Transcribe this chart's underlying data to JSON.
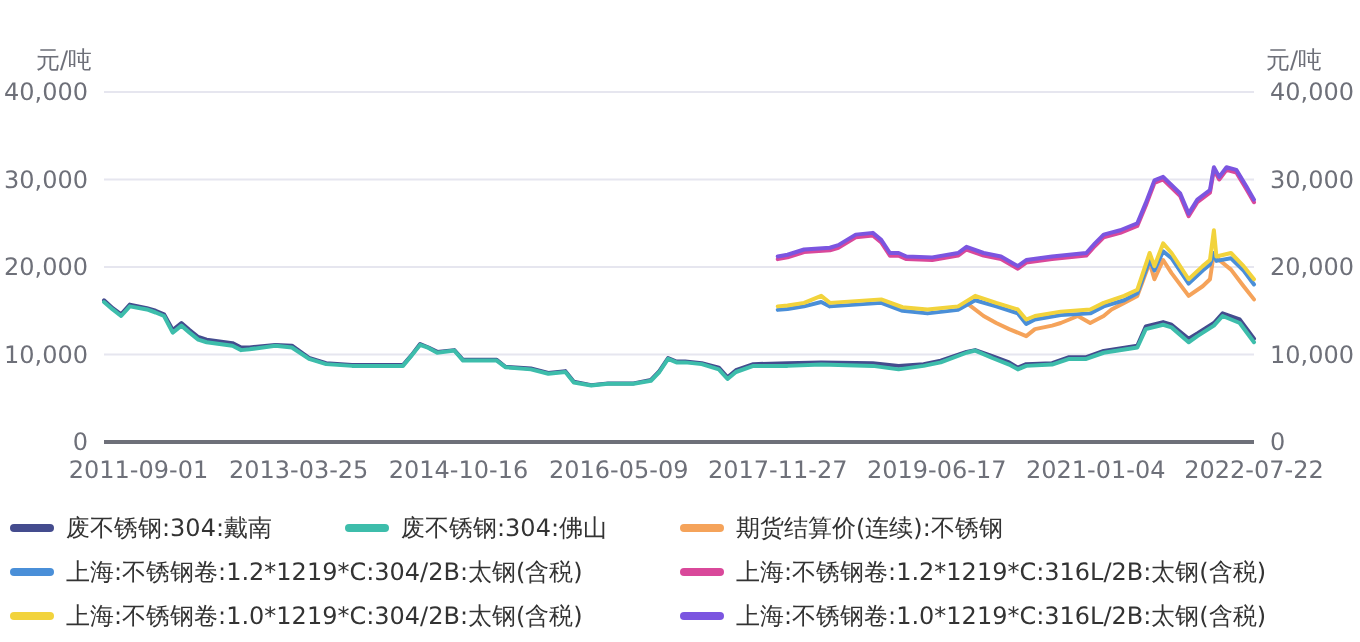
{
  "chart_data": {
    "type": "line",
    "ylabel": "元/吨",
    "y2label": "元/吨",
    "xlim": [
      "2011-05-01",
      "2022-07-22"
    ],
    "xticks": [
      "2011-09-01",
      "2013-03-25",
      "2014-10-16",
      "2016-05-09",
      "2017-11-27",
      "2019-06-17",
      "2021-01-04",
      "2022-07-22"
    ],
    "ylim": [
      0,
      40000
    ],
    "yticks": [
      {
        "value": 0,
        "label": "0"
      },
      {
        "value": 10000,
        "label": "10,000"
      },
      {
        "value": 20000,
        "label": "20,000"
      },
      {
        "value": 30000,
        "label": "30,000"
      },
      {
        "value": 40000,
        "label": "40,000"
      }
    ],
    "y2lim": [
      0,
      40000
    ],
    "y2ticks": [
      {
        "value": 0,
        "label": "0"
      },
      {
        "value": 10000,
        "label": "10,000"
      },
      {
        "value": 20000,
        "label": "20,000"
      },
      {
        "value": 30000,
        "label": "30,000"
      },
      {
        "value": 40000,
        "label": "40,000"
      }
    ],
    "grid": "y",
    "legend": "bottom",
    "marker": "none",
    "line_style": "solid",
    "series": [
      {
        "name": "废不锈钢:304:戴南",
        "color": "#444c8e",
        "x": [
          "2011-05-01",
          "2011-06-01",
          "2011-07-01",
          "2011-08-01",
          "2011-10-01",
          "2011-11-01",
          "2011-12-01",
          "2012-01-01",
          "2012-02-01",
          "2012-03-01",
          "2012-04-01",
          "2012-05-01",
          "2012-08-01",
          "2012-09-01",
          "2012-10-01",
          "2013-01-01",
          "2013-03-01",
          "2013-05-01",
          "2013-07-01",
          "2013-10-01",
          "2014-01-01",
          "2014-04-01",
          "2014-05-01",
          "2014-06-01",
          "2014-07-01",
          "2014-08-01",
          "2014-10-01",
          "2014-11-01",
          "2015-03-01",
          "2015-04-01",
          "2015-07-01",
          "2015-09-01",
          "2015-11-01",
          "2015-12-01",
          "2016-02-01",
          "2016-04-01",
          "2016-07-01",
          "2016-09-01",
          "2016-10-01",
          "2016-11-01",
          "2016-12-01",
          "2017-01-01",
          "2017-03-01",
          "2017-05-01",
          "2017-06-01",
          "2017-07-01",
          "2017-09-01",
          "2018-01-01",
          "2018-05-01",
          "2018-11-01",
          "2019-02-01",
          "2019-05-01",
          "2019-07-01",
          "2019-10-01",
          "2019-11-01",
          "2020-01-01",
          "2020-03-01",
          "2020-04-01",
          "2020-05-01",
          "2020-08-01",
          "2020-10-01",
          "2020-12-01",
          "2021-02-01",
          "2021-06-01",
          "2021-07-01",
          "2021-09-01",
          "2021-10-01",
          "2021-12-01",
          "2022-01-01",
          "2022-03-01",
          "2022-04-01",
          "2022-06-01",
          "2022-07-22"
        ],
        "values": [
          16200,
          15300,
          14600,
          15700,
          15300,
          15000,
          14600,
          12800,
          13600,
          12800,
          12000,
          11700,
          11300,
          10800,
          10800,
          11100,
          11000,
          9600,
          9000,
          8800,
          8800,
          8800,
          9900,
          11200,
          10800,
          10300,
          10500,
          9400,
          9400,
          8600,
          8400,
          7900,
          8100,
          6900,
          6500,
          6700,
          6700,
          7100,
          8100,
          9600,
          9200,
          9200,
          9000,
          8500,
          7400,
          8200,
          8900,
          9000,
          9100,
          9000,
          8700,
          8900,
          9300,
          10300,
          10500,
          9800,
          9100,
          8500,
          8900,
          9000,
          9700,
          9700,
          10400,
          11000,
          13200,
          13700,
          13400,
          11800,
          12400,
          13600,
          14700,
          14000,
          11800
        ]
      },
      {
        "name": "废不锈钢:304:佛山",
        "color": "#3dbdab",
        "x": [
          "2011-05-01",
          "2011-06-01",
          "2011-07-01",
          "2011-08-01",
          "2011-10-01",
          "2011-11-01",
          "2011-12-01",
          "2012-01-01",
          "2012-02-01",
          "2012-03-01",
          "2012-04-01",
          "2012-05-01",
          "2012-08-01",
          "2012-09-01",
          "2012-10-01",
          "2013-01-01",
          "2013-03-01",
          "2013-05-01",
          "2013-07-01",
          "2013-10-01",
          "2014-01-01",
          "2014-04-01",
          "2014-05-01",
          "2014-06-01",
          "2014-07-01",
          "2014-08-01",
          "2014-10-01",
          "2014-11-01",
          "2015-03-01",
          "2015-04-01",
          "2015-07-01",
          "2015-09-01",
          "2015-11-01",
          "2015-12-01",
          "2016-02-01",
          "2016-04-01",
          "2016-07-01",
          "2016-09-01",
          "2016-10-01",
          "2016-11-01",
          "2016-12-01",
          "2017-01-01",
          "2017-03-01",
          "2017-05-01",
          "2017-06-01",
          "2017-07-01",
          "2017-09-01",
          "2018-01-01",
          "2018-05-01",
          "2018-11-01",
          "2019-02-01",
          "2019-05-01",
          "2019-07-01",
          "2019-10-01",
          "2019-11-01",
          "2020-01-01",
          "2020-03-01",
          "2020-04-01",
          "2020-05-01",
          "2020-08-01",
          "2020-10-01",
          "2020-12-01",
          "2021-02-01",
          "2021-06-01",
          "2021-07-01",
          "2021-09-01",
          "2021-10-01",
          "2021-12-01",
          "2022-01-01",
          "2022-03-01",
          "2022-04-01",
          "2022-06-01",
          "2022-07-22"
        ],
        "values": [
          16000,
          15150,
          14400,
          15500,
          15150,
          14800,
          14400,
          12500,
          13300,
          12500,
          11700,
          11400,
          11000,
          10500,
          10600,
          11000,
          10800,
          9500,
          8900,
          8700,
          8700,
          8700,
          9850,
          11100,
          10750,
          10200,
          10450,
          9300,
          9300,
          8550,
          8300,
          7800,
          8000,
          6800,
          6450,
          6650,
          6650,
          7000,
          8000,
          9500,
          9100,
          9100,
          8900,
          8300,
          7200,
          8000,
          8700,
          8700,
          8850,
          8700,
          8300,
          8700,
          9100,
          10200,
          10450,
          9600,
          8850,
          8300,
          8700,
          8850,
          9500,
          9500,
          10200,
          10800,
          12900,
          13400,
          13100,
          11400,
          12100,
          13300,
          14400,
          13600,
          11400
        ]
      },
      {
        "name": "期货结算价(连续):不锈钢",
        "color": "#f5a35a",
        "x": [
          "2019-10-01",
          "2019-12-01",
          "2020-01-15",
          "2020-03-01",
          "2020-05-01",
          "2020-06-01",
          "2020-08-01",
          "2020-09-01",
          "2020-11-01",
          "2020-12-15",
          "2021-02-01",
          "2021-03-01",
          "2021-04-15",
          "2021-06-01",
          "2021-07-15",
          "2021-08-01",
          "2021-09-01",
          "2021-10-01",
          "2021-12-01",
          "2022-01-20",
          "2022-02-15",
          "2022-03-01",
          "2022-03-20",
          "2022-05-01",
          "2022-06-15",
          "2022-07-22"
        ],
        "values": [
          15900,
          14400,
          13600,
          12900,
          12100,
          12900,
          13300,
          13600,
          14400,
          13600,
          14400,
          15150,
          15900,
          16700,
          20500,
          18600,
          20800,
          19300,
          16700,
          17800,
          18600,
          21600,
          20800,
          19700,
          17800,
          16300
        ]
      },
      {
        "name": "上海:不锈钢卷:1.2*1219*C:304/2B:太钢(含税)",
        "color": "#4a8fd8",
        "x": [
          "2017-11-27",
          "2018-01-01",
          "2018-03-01",
          "2018-05-01",
          "2018-06-01",
          "2018-09-01",
          "2018-12-01",
          "2019-02-15",
          "2019-05-15",
          "2019-09-01",
          "2019-11-01",
          "2020-01-15",
          "2020-04-01",
          "2020-05-01",
          "2020-06-01",
          "2020-09-01",
          "2020-12-15",
          "2021-02-01",
          "2021-04-15",
          "2021-06-01",
          "2021-07-15",
          "2021-08-01",
          "2021-09-01",
          "2021-10-01",
          "2021-12-01",
          "2022-01-20",
          "2022-02-15",
          "2022-03-01",
          "2022-03-10",
          "2022-05-01",
          "2022-06-15",
          "2022-07-22"
        ],
        "values": [
          15100,
          15200,
          15500,
          16000,
          15500,
          15700,
          15900,
          15000,
          14700,
          15100,
          16200,
          15500,
          14700,
          13500,
          14000,
          14500,
          14700,
          15500,
          16200,
          17000,
          20800,
          19600,
          21800,
          21000,
          18100,
          19600,
          20300,
          21600,
          20700,
          21000,
          19600,
          18000
        ]
      },
      {
        "name": "上海:不锈钢卷:1.2*1219*C:316L/2B:太钢(含税)",
        "color": "#d9489a",
        "x": [
          "2017-11-27",
          "2018-01-01",
          "2018-03-01",
          "2018-06-01",
          "2018-07-01",
          "2018-09-01",
          "2018-11-01",
          "2018-12-01",
          "2019-01-01",
          "2019-02-01",
          "2019-03-01",
          "2019-06-01",
          "2019-09-01",
          "2019-10-01",
          "2019-12-01",
          "2020-02-01",
          "2020-04-01",
          "2020-05-01",
          "2020-08-01",
          "2020-12-01",
          "2021-01-01",
          "2021-02-01",
          "2021-04-01",
          "2021-06-01",
          "2021-07-01",
          "2021-08-01",
          "2021-09-01",
          "2021-11-01",
          "2021-12-01",
          "2022-01-01",
          "2022-02-15",
          "2022-03-01",
          "2022-03-20",
          "2022-04-15",
          "2022-05-20",
          "2022-06-25",
          "2022-07-22"
        ],
        "values": [
          20900,
          21100,
          21700,
          21900,
          22200,
          23400,
          23600,
          22800,
          21300,
          21300,
          20900,
          20800,
          21300,
          22000,
          21300,
          20900,
          19800,
          20500,
          20900,
          21300,
          22400,
          23400,
          23900,
          24700,
          27000,
          29600,
          30000,
          28100,
          25800,
          27400,
          28500,
          31100,
          30000,
          31100,
          30800,
          28900,
          27400
        ]
      },
      {
        "name": "上海:不锈钢卷:1.0*1219*C:304/2B:太钢(含税)",
        "color": "#f2d33c",
        "x": [
          "2017-11-27",
          "2018-01-01",
          "2018-03-01",
          "2018-05-01",
          "2018-06-01",
          "2018-09-01",
          "2018-12-01",
          "2019-02-15",
          "2019-05-15",
          "2019-09-01",
          "2019-11-01",
          "2020-01-15",
          "2020-04-01",
          "2020-05-01",
          "2020-06-01",
          "2020-09-01",
          "2020-12-15",
          "2021-02-01",
          "2021-04-15",
          "2021-06-01",
          "2021-07-15",
          "2021-08-01",
          "2021-09-01",
          "2021-10-01",
          "2021-12-01",
          "2022-01-20",
          "2022-02-15",
          "2022-03-01",
          "2022-03-10",
          "2022-05-01",
          "2022-06-15",
          "2022-07-22"
        ],
        "values": [
          15500,
          15600,
          15900,
          16700,
          15900,
          16100,
          16300,
          15400,
          15150,
          15500,
          16700,
          15900,
          15150,
          14000,
          14400,
          14900,
          15150,
          15900,
          16700,
          17400,
          21600,
          20100,
          22700,
          21600,
          18600,
          20100,
          20800,
          24200,
          21200,
          21600,
          20100,
          18600
        ]
      },
      {
        "name": "上海:不锈钢卷:1.0*1219*C:316L/2B:太钢(含税)",
        "color": "#7b55e0",
        "x": [
          "2017-11-27",
          "2018-01-01",
          "2018-03-01",
          "2018-06-01",
          "2018-07-01",
          "2018-09-01",
          "2018-11-01",
          "2018-12-01",
          "2019-01-01",
          "2019-02-01",
          "2019-03-01",
          "2019-06-01",
          "2019-09-01",
          "2019-10-01",
          "2019-12-01",
          "2020-02-01",
          "2020-04-01",
          "2020-05-01",
          "2020-08-01",
          "2020-12-01",
          "2021-01-01",
          "2021-02-01",
          "2021-04-01",
          "2021-06-01",
          "2021-07-01",
          "2021-08-01",
          "2021-09-01",
          "2021-11-01",
          "2021-12-01",
          "2022-01-01",
          "2022-02-15",
          "2022-03-01",
          "2022-03-20",
          "2022-04-15",
          "2022-05-20",
          "2022-06-25",
          "2022-07-22"
        ],
        "values": [
          21200,
          21400,
          22000,
          22200,
          22500,
          23700,
          23900,
          23100,
          21600,
          21600,
          21200,
          21100,
          21600,
          22300,
          21600,
          21200,
          20100,
          20800,
          21200,
          21600,
          22700,
          23700,
          24200,
          25000,
          27300,
          29900,
          30300,
          28400,
          26100,
          27700,
          28800,
          31400,
          30300,
          31400,
          31100,
          29200,
          27700
        ]
      }
    ]
  }
}
